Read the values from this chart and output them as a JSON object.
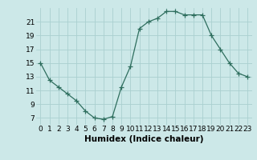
{
  "x": [
    0,
    1,
    2,
    3,
    4,
    5,
    6,
    7,
    8,
    9,
    10,
    11,
    12,
    13,
    14,
    15,
    16,
    17,
    18,
    19,
    20,
    21,
    22,
    23
  ],
  "y": [
    15,
    12.5,
    11.5,
    10.5,
    9.5,
    8.0,
    7.0,
    6.8,
    7.2,
    11.5,
    14.5,
    20.0,
    21.0,
    21.5,
    22.5,
    22.5,
    22.0,
    22.0,
    22.0,
    19.0,
    17.0,
    15.0,
    13.5,
    13.0
  ],
  "line_color": "#2e6e5e",
  "marker": "+",
  "marker_size": 4,
  "bg_color": "#cce8e8",
  "grid_color": "#aad0d0",
  "xlabel": "Humidex (Indice chaleur)",
  "xlim": [
    -0.5,
    23.5
  ],
  "ylim": [
    6.0,
    23.0
  ],
  "yticks": [
    7,
    9,
    11,
    13,
    15,
    17,
    19,
    21
  ],
  "xticks": [
    0,
    1,
    2,
    3,
    4,
    5,
    6,
    7,
    8,
    9,
    10,
    11,
    12,
    13,
    14,
    15,
    16,
    17,
    18,
    19,
    20,
    21,
    22,
    23
  ],
  "xlabel_fontsize": 7.5,
  "tick_fontsize": 6.5
}
